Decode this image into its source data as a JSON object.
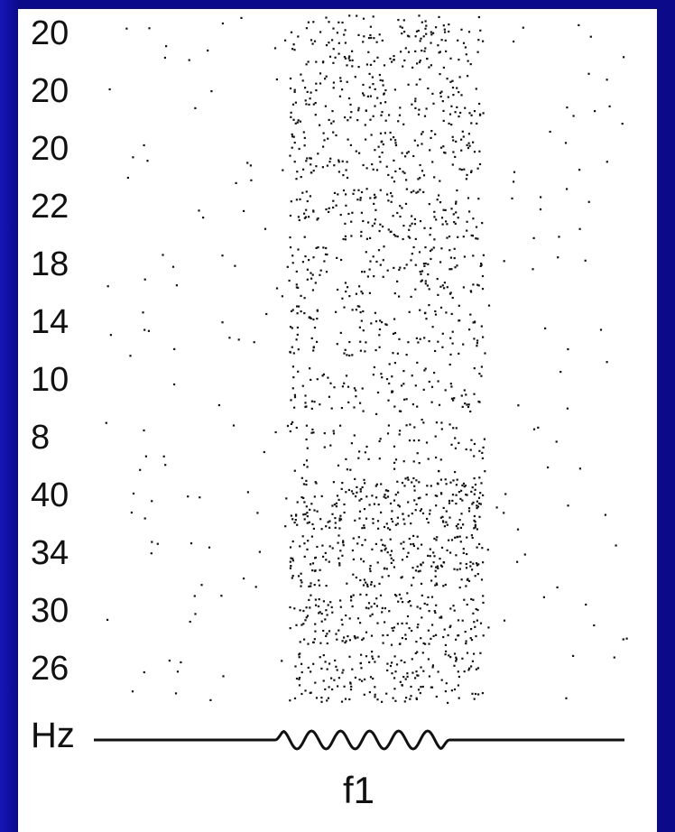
{
  "figure": {
    "row_labels": [
      "20",
      "20",
      "20",
      "22",
      "18",
      "14",
      "10",
      "8",
      "40",
      "34",
      "30",
      "26"
    ],
    "axis_unit": "Hz",
    "stimulus_label": "f1",
    "colors": {
      "background": "#0b0b8a",
      "panel": "#ffffff",
      "ink": "#111111"
    }
  }
}
